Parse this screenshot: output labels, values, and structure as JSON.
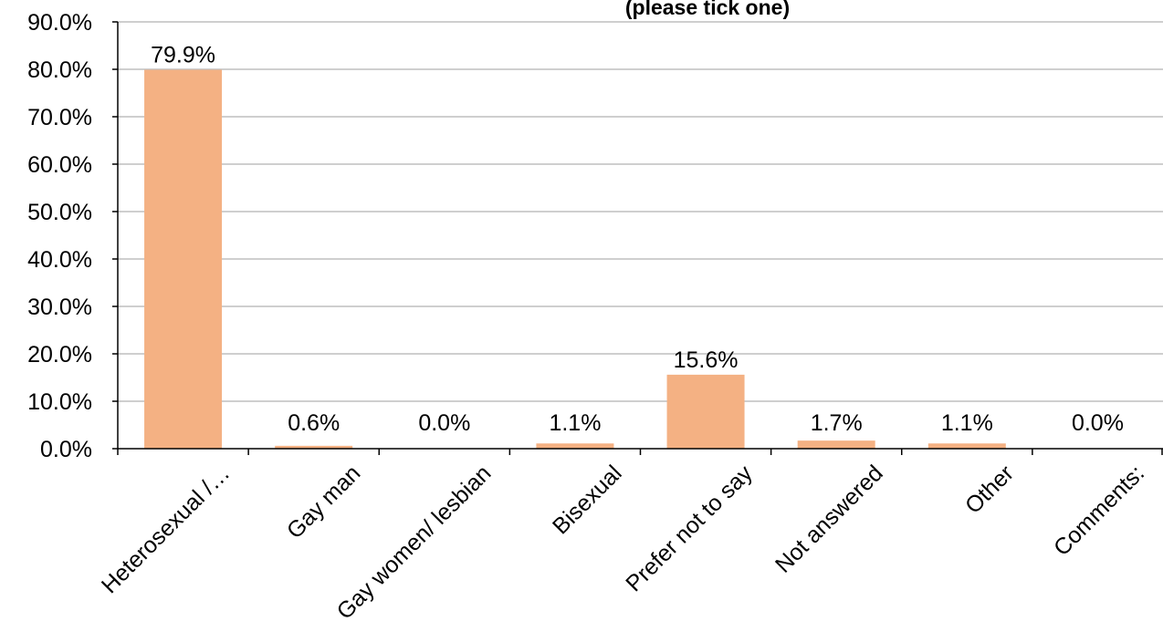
{
  "chart_data": {
    "type": "bar",
    "title": "(please tick one)",
    "xlabel": "",
    "ylabel": "",
    "categories": [
      "Heterosexual /…",
      "Gay man",
      "Gay women/ lesbian",
      "Bisexual",
      "Prefer not to say",
      "Not answered",
      "Other",
      "Comments:"
    ],
    "values": [
      79.9,
      0.6,
      0.0,
      1.1,
      15.6,
      1.7,
      1.1,
      0.0
    ],
    "data_labels": [
      "79.9%",
      "0.6%",
      "0.0%",
      "1.1%",
      "15.6%",
      "1.7%",
      "1.1%",
      "0.0%"
    ],
    "ylim": [
      0,
      90
    ],
    "yticks": [
      0,
      10,
      20,
      30,
      40,
      50,
      60,
      70,
      80,
      90
    ],
    "ytick_labels": [
      "0.0%",
      "10.0%",
      "20.0%",
      "30.0%",
      "40.0%",
      "50.0%",
      "60.0%",
      "70.0%",
      "80.0%",
      "90.0%"
    ],
    "grid": true,
    "legend": "none",
    "bar_color": "#f4b183"
  }
}
